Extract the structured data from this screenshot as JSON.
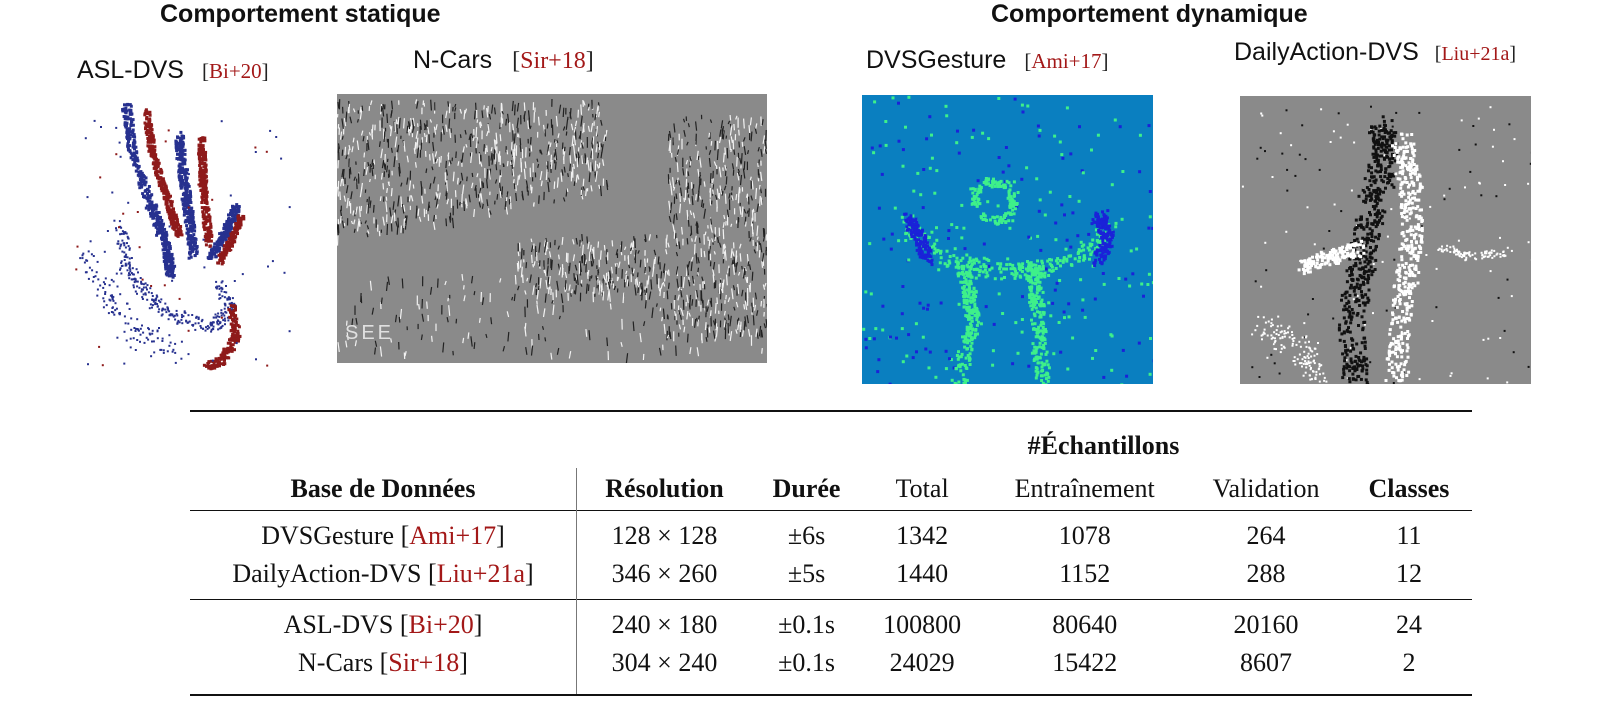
{
  "sections": {
    "static_title": "Comportement statique",
    "dynamic_title": "Comportement dynamique"
  },
  "panels": {
    "asl": {
      "name": "ASL-DVS",
      "cite_open": "[",
      "cite": "Bi+20",
      "cite_close": "]"
    },
    "ncars": {
      "name": "N-Cars",
      "cite_open": "[",
      "cite": "Sir+18",
      "cite_close": "]",
      "overlay_text": "SEE"
    },
    "dvsgesture": {
      "name": "DVSGesture",
      "cite_open": "[",
      "cite": "Ami+17",
      "cite_close": "]"
    },
    "dailyaction": {
      "name": "DailyAction-DVS",
      "cite_open": "[",
      "cite": "Liu+21a",
      "cite_close": "]"
    }
  },
  "table": {
    "group_header": "#Échantillons",
    "headers": [
      "Base de Données",
      "Résolution",
      "Durée",
      "Total",
      "Entraînement",
      "Validation",
      "Classes"
    ],
    "groups": [
      [
        {
          "name": "DVSGesture",
          "cite": "Ami+17",
          "resolution": "128 × 128",
          "duration": "±6s",
          "total": "1342",
          "train": "1078",
          "val": "264",
          "classes": "11"
        },
        {
          "name": "DailyAction-DVS",
          "cite": "Liu+21a",
          "resolution": "346 × 260",
          "duration": "±5s",
          "total": "1440",
          "train": "1152",
          "val": "288",
          "classes": "12"
        }
      ],
      [
        {
          "name": "ASL-DVS",
          "cite": "Bi+20",
          "resolution": "240 × 180",
          "duration": "±0.1s",
          "total": "100800",
          "train": "80640",
          "val": "20160",
          "classes": "24"
        },
        {
          "name": "N-Cars",
          "cite": "Sir+18",
          "resolution": "304 × 240",
          "duration": "±0.1s",
          "total": "24029",
          "train": "15422",
          "val": "8607",
          "classes": "2"
        }
      ]
    ]
  },
  "colors": {
    "citation": "#a31818",
    "asl_blue": "#27318f",
    "asl_red": "#8e1a1a",
    "dvsgesture_bg": "#0a7fc0",
    "dvsgesture_green": "#3ef08a",
    "dvsgesture_blue": "#1a22d8",
    "event_gray": "#8a8a8a"
  }
}
